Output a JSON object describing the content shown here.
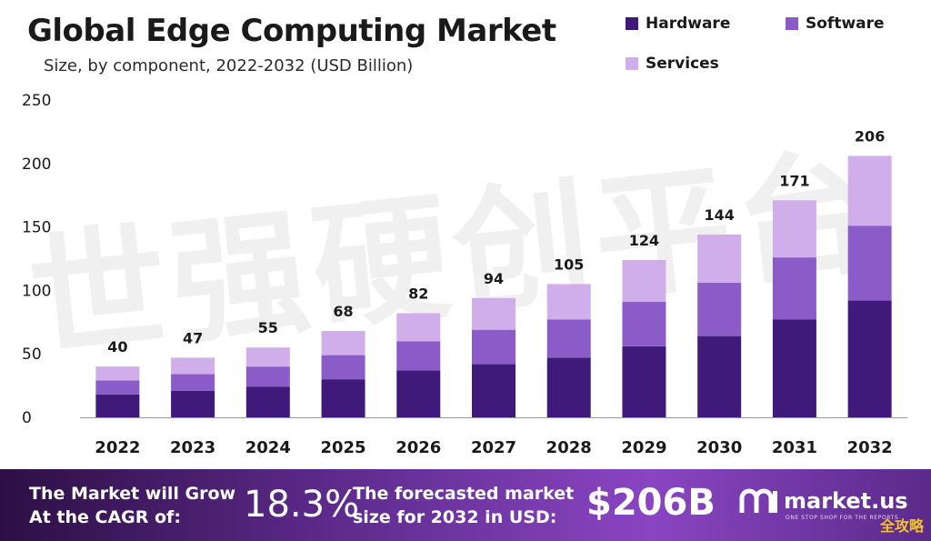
{
  "header": {
    "title": "Global Edge Computing Market",
    "subtitle": "Size, by component, 2022-2032 (USD Billion)"
  },
  "legend": {
    "hardware": "Hardware",
    "software": "Software",
    "services": "Services"
  },
  "colors": {
    "hardware": "#3f1a7a",
    "software": "#8b5cc8",
    "services": "#cfaeea",
    "footer_start": "#2d0f45",
    "footer_end": "#8a45c2"
  },
  "chart_data": {
    "type": "bar",
    "stacked": true,
    "title": "Global Edge Computing Market",
    "subtitle": "Size, by component, 2022-2032 (USD Billion)",
    "categories": [
      "2022",
      "2023",
      "2024",
      "2025",
      "2026",
      "2027",
      "2028",
      "2029",
      "2030",
      "2031",
      "2032"
    ],
    "series": [
      {
        "name": "Hardware",
        "values": [
          18,
          21,
          24,
          30,
          37,
          42,
          47,
          56,
          64,
          77,
          92
        ]
      },
      {
        "name": "Software",
        "values": [
          11,
          13,
          16,
          19,
          23,
          27,
          30,
          35,
          42,
          49,
          59
        ]
      },
      {
        "name": "Services",
        "values": [
          11,
          13,
          15,
          19,
          22,
          25,
          28,
          33,
          38,
          45,
          55
        ]
      }
    ],
    "totals": [
      40,
      47,
      55,
      68,
      82,
      94,
      105,
      124,
      144,
      171,
      206
    ],
    "ylim": [
      0,
      250
    ],
    "yticks": [
      0,
      50,
      100,
      150,
      200,
      250
    ],
    "xlabel": "",
    "ylabel": "",
    "grid": false,
    "legend_position": "top-right"
  },
  "watermark": "世强硬创平台",
  "footer": {
    "cagr_label": "The Market will Grow At the CAGR of:",
    "cagr_value": "18.3%",
    "forecast_label": "The forecasted market size for 2032 in USD:",
    "forecast_value": "$206B",
    "brand": "market.us",
    "tagline": "ONE STOP SHOP FOR THE REPORTS",
    "corner_mark": "全攻略"
  }
}
